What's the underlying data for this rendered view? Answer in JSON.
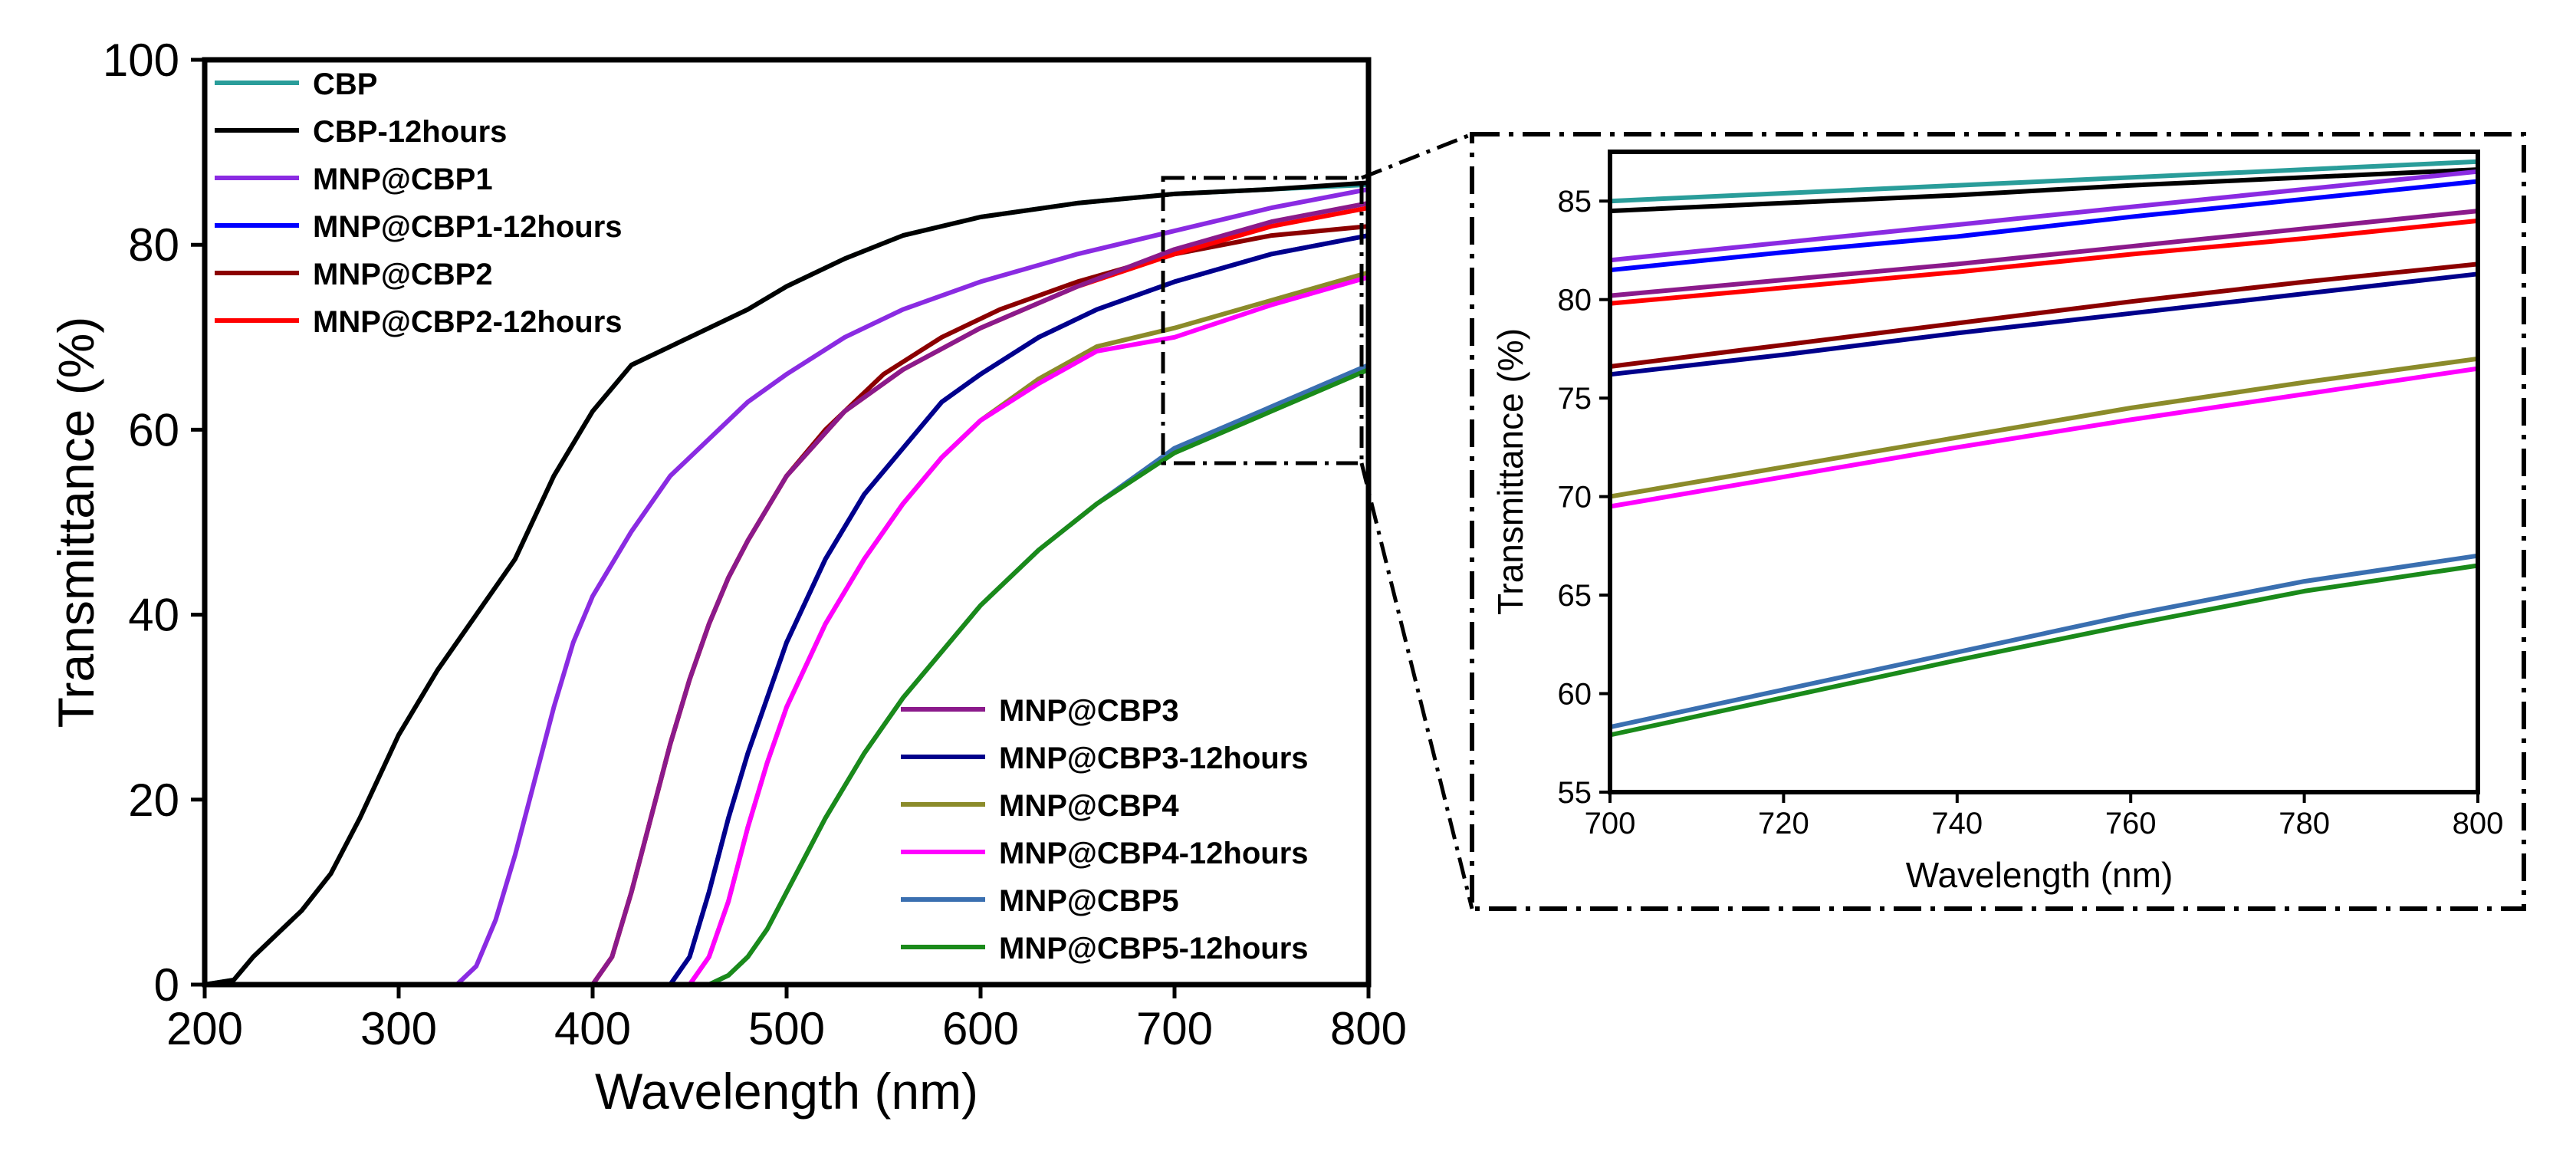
{
  "chart_data": [
    {
      "type": "line",
      "id": "main",
      "title": "",
      "xlabel": "Wavelength (nm)",
      "ylabel": "Transmittance (%)",
      "xlim": [
        200,
        800
      ],
      "ylim": [
        0,
        100
      ],
      "xticks": [
        200,
        300,
        400,
        500,
        600,
        700,
        800
      ],
      "yticks": [
        0,
        20,
        40,
        60,
        80,
        100
      ],
      "legend_groups": [
        {
          "placement": "top-left",
          "series": [
            "CBP",
            "CBP-12hours",
            "MNP@CBP1",
            "MNP@CBP1-12hours",
            "MNP@CBP2",
            "MNP@CBP2-12hours"
          ]
        },
        {
          "placement": "bottom-right",
          "series": [
            "MNP@CBP3",
            "MNP@CBP3-12hours",
            "MNP@CBP4",
            "MNP@CBP4-12hours",
            "MNP@CBP5",
            "MNP@CBP5-12hours"
          ]
        }
      ],
      "series": [
        {
          "name": "CBP",
          "color": "#2a9d9a",
          "x": [
            200,
            215,
            225,
            240,
            250,
            265,
            280,
            300,
            320,
            340,
            360,
            380,
            400,
            420,
            440,
            450,
            455,
            480,
            500,
            530,
            560,
            600,
            650,
            700,
            750,
            800
          ],
          "y": [
            0,
            0.5,
            3,
            6,
            8,
            12,
            18,
            27,
            34,
            40,
            46,
            55,
            62,
            67,
            69,
            70,
            70.5,
            73,
            75.5,
            78.5,
            81,
            83,
            84.5,
            85.5,
            86,
            86.5
          ]
        },
        {
          "name": "CBP-12hours",
          "color": "#000000",
          "x": [
            200,
            215,
            225,
            240,
            250,
            265,
            280,
            300,
            320,
            340,
            360,
            380,
            400,
            420,
            440,
            450,
            455,
            480,
            500,
            530,
            560,
            600,
            650,
            700,
            750,
            800
          ],
          "y": [
            0,
            0.5,
            3,
            6,
            8,
            12,
            18,
            27,
            34,
            40,
            46,
            55,
            62,
            67,
            69,
            70,
            70.5,
            73,
            75.5,
            78.5,
            81,
            83,
            84.5,
            85.5,
            86,
            86.7
          ]
        },
        {
          "name": "MNP@CBP1",
          "color": "#8a2be2",
          "x": [
            200,
            330,
            340,
            350,
            360,
            370,
            380,
            390,
            400,
            420,
            440,
            460,
            480,
            500,
            530,
            560,
            600,
            650,
            700,
            750,
            800
          ],
          "y": [
            0,
            0,
            2,
            7,
            14,
            22,
            30,
            37,
            42,
            49,
            55,
            59,
            63,
            66,
            70,
            73,
            76,
            79,
            81.5,
            84,
            86
          ]
        },
        {
          "name": "MNP@CBP1-12hours",
          "color": "#0000ff",
          "x": [
            200,
            440,
            450,
            460,
            470,
            480,
            490,
            500,
            520,
            540,
            560,
            580,
            600,
            630,
            660,
            700,
            750,
            800
          ],
          "y": [
            0,
            0,
            3,
            10,
            18,
            25,
            31,
            37,
            46,
            53,
            58,
            63,
            66,
            70,
            73,
            76,
            79,
            81
          ]
        },
        {
          "name": "MNP@CBP2",
          "color": "#8b0000",
          "x": [
            200,
            400,
            410,
            420,
            430,
            440,
            450,
            460,
            470,
            480,
            500,
            520,
            550,
            580,
            610,
            650,
            700,
            750,
            800
          ],
          "y": [
            0,
            0,
            3,
            10,
            18,
            26,
            33,
            39,
            44,
            48,
            55,
            60,
            66,
            70,
            73,
            76,
            79,
            81,
            82
          ]
        },
        {
          "name": "MNP@CBP2-12hours",
          "color": "#ff0000",
          "x": [
            200,
            400,
            410,
            420,
            430,
            440,
            450,
            460,
            470,
            480,
            500,
            530,
            560,
            600,
            650,
            700,
            750,
            800
          ],
          "y": [
            0,
            0,
            3,
            10,
            18,
            26,
            33,
            39,
            44,
            48,
            55,
            62,
            66.5,
            71,
            75.5,
            79,
            82,
            84
          ]
        },
        {
          "name": "MNP@CBP3",
          "color": "#8b1a8b",
          "x": [
            200,
            400,
            410,
            420,
            430,
            440,
            450,
            460,
            470,
            480,
            500,
            530,
            560,
            600,
            650,
            700,
            750,
            800
          ],
          "y": [
            0,
            0,
            3,
            10,
            18,
            26,
            33,
            39,
            44,
            48,
            55,
            62,
            66.5,
            71,
            75.5,
            79.5,
            82.5,
            84.5
          ]
        },
        {
          "name": "MNP@CBP3-12hours",
          "color": "#00008b",
          "x": [
            200,
            440,
            450,
            460,
            470,
            480,
            490,
            500,
            520,
            540,
            560,
            580,
            600,
            630,
            660,
            700,
            750,
            800
          ],
          "y": [
            0,
            0,
            3,
            10,
            18,
            25,
            31,
            37,
            46,
            53,
            58,
            63,
            66,
            70,
            73,
            76,
            79,
            81
          ]
        },
        {
          "name": "MNP@CBP4",
          "color": "#8b8b2a",
          "x": [
            200,
            450,
            460,
            470,
            480,
            490,
            500,
            520,
            540,
            560,
            580,
            600,
            630,
            660,
            700,
            750,
            800
          ],
          "y": [
            0,
            0,
            3,
            9,
            17,
            24,
            30,
            39,
            46,
            52,
            57,
            61,
            65.5,
            69,
            71,
            74,
            77
          ]
        },
        {
          "name": "MNP@CBP4-12hours",
          "color": "#ff00ff",
          "x": [
            200,
            450,
            460,
            470,
            480,
            490,
            500,
            520,
            540,
            560,
            580,
            600,
            630,
            660,
            700,
            750,
            800
          ],
          "y": [
            0,
            0,
            3,
            9,
            17,
            24,
            30,
            39,
            46,
            52,
            57,
            61,
            65,
            68.5,
            70,
            73.5,
            76.5
          ]
        },
        {
          "name": "MNP@CBP5",
          "color": "#3a6fb0",
          "x": [
            200,
            460,
            470,
            480,
            490,
            500,
            510,
            520,
            540,
            560,
            580,
            600,
            630,
            660,
            700,
            750,
            800
          ],
          "y": [
            0,
            0,
            1,
            3,
            6,
            10,
            14,
            18,
            25,
            31,
            36,
            41,
            47,
            52,
            58,
            62.5,
            67
          ]
        },
        {
          "name": "MNP@CBP5-12hours",
          "color": "#1a8a1a",
          "x": [
            200,
            460,
            470,
            480,
            490,
            500,
            510,
            520,
            540,
            560,
            580,
            600,
            630,
            660,
            700,
            750,
            800
          ],
          "y": [
            0,
            0,
            1,
            3,
            6,
            10,
            14,
            18,
            25,
            31,
            36,
            41,
            47,
            52,
            57.5,
            62,
            66.5
          ]
        }
      ]
    },
    {
      "type": "line",
      "id": "inset",
      "title": "",
      "xlabel": "Wavelength (nm)",
      "ylabel": "Transmittance (%)",
      "xlim": [
        700,
        800
      ],
      "ylim": [
        55,
        87.5
      ],
      "xticks": [
        700,
        720,
        740,
        760,
        780,
        800
      ],
      "yticks": [
        55,
        60,
        65,
        70,
        75,
        80,
        85
      ],
      "series": [
        {
          "name": "CBP",
          "color": "#2a9d9a",
          "x": [
            700,
            720,
            740,
            760,
            780,
            800
          ],
          "y": [
            85,
            85.4,
            85.8,
            86.2,
            86.6,
            87
          ]
        },
        {
          "name": "CBP-12hours",
          "color": "#000000",
          "x": [
            700,
            720,
            740,
            760,
            780,
            800
          ],
          "y": [
            84.5,
            84.9,
            85.3,
            85.8,
            86.2,
            86.6
          ]
        },
        {
          "name": "MNP@CBP1",
          "color": "#8a2be2",
          "x": [
            700,
            720,
            740,
            760,
            780,
            800
          ],
          "y": [
            82,
            82.9,
            83.8,
            84.7,
            85.6,
            86.5
          ]
        },
        {
          "name": "MNP@CBP1-12hours",
          "color": "#0000ff",
          "x": [
            700,
            720,
            740,
            760,
            780,
            800
          ],
          "y": [
            81.5,
            82.4,
            83.2,
            84.2,
            85.1,
            86
          ]
        },
        {
          "name": "MNP@CBP3",
          "color": "#8b1a8b",
          "x": [
            700,
            720,
            740,
            760,
            780,
            800
          ],
          "y": [
            80.2,
            81,
            81.8,
            82.7,
            83.6,
            84.5
          ]
        },
        {
          "name": "MNP@CBP2-12hours",
          "color": "#ff0000",
          "x": [
            700,
            720,
            740,
            760,
            780,
            800
          ],
          "y": [
            79.8,
            80.6,
            81.4,
            82.3,
            83.1,
            84
          ]
        },
        {
          "name": "MNP@CBP2",
          "color": "#8b0000",
          "x": [
            700,
            720,
            740,
            760,
            780,
            800
          ],
          "y": [
            76.6,
            77.7,
            78.8,
            79.9,
            80.9,
            81.8
          ]
        },
        {
          "name": "MNP@CBP3-12hours",
          "color": "#00008b",
          "x": [
            700,
            720,
            740,
            760,
            780,
            800
          ],
          "y": [
            76.2,
            77.2,
            78.3,
            79.3,
            80.3,
            81.3
          ]
        },
        {
          "name": "MNP@CBP4",
          "color": "#8b8b2a",
          "x": [
            700,
            720,
            740,
            760,
            780,
            800
          ],
          "y": [
            70,
            71.5,
            73,
            74.5,
            75.8,
            77
          ]
        },
        {
          "name": "MNP@CBP4-12hours",
          "color": "#ff00ff",
          "x": [
            700,
            720,
            740,
            760,
            780,
            800
          ],
          "y": [
            69.5,
            71,
            72.5,
            73.9,
            75.2,
            76.5
          ]
        },
        {
          "name": "MNP@CBP5",
          "color": "#3a6fb0",
          "x": [
            700,
            720,
            740,
            760,
            780,
            800
          ],
          "y": [
            58.3,
            60.2,
            62.1,
            64,
            65.7,
            67
          ]
        },
        {
          "name": "MNP@CBP5-12hours",
          "color": "#1a8a1a",
          "x": [
            700,
            720,
            740,
            760,
            780,
            800
          ],
          "y": [
            57.9,
            59.8,
            61.7,
            63.5,
            65.2,
            66.5
          ]
        }
      ]
    }
  ]
}
